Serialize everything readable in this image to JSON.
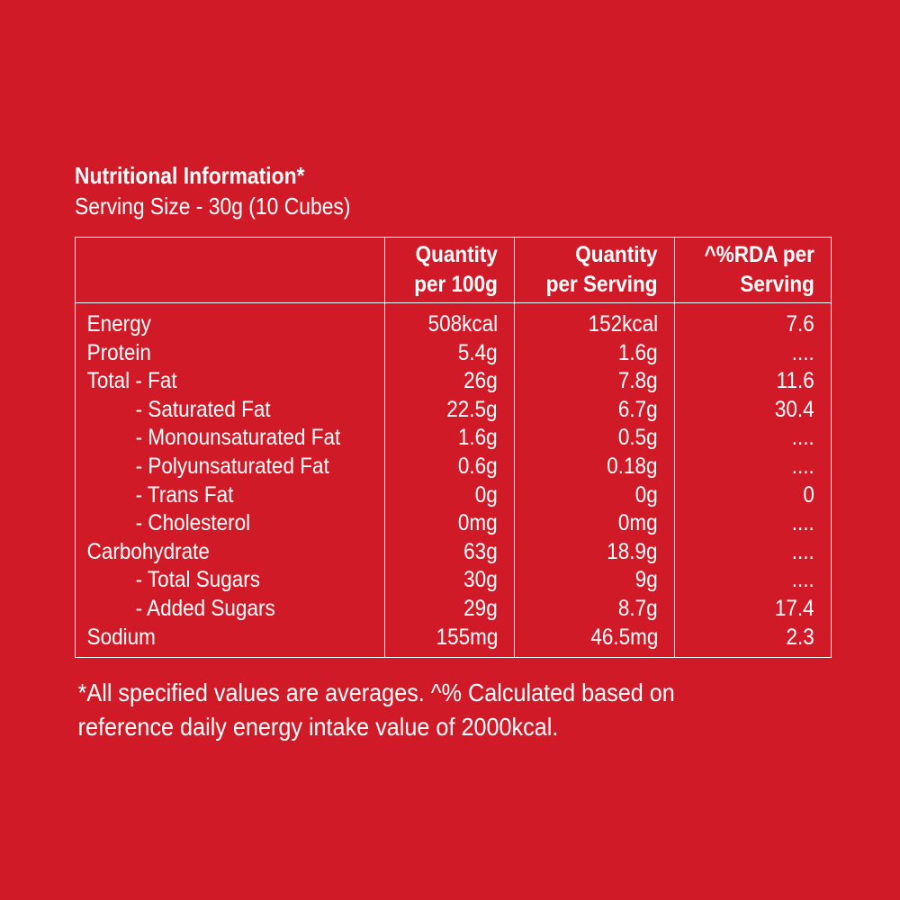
{
  "label": {
    "title": "Nutritional Information*",
    "serving_size": "Serving Size - 30g  (10 Cubes)",
    "headers": {
      "per_100g": [
        "Quantity",
        "per 100g"
      ],
      "per_serving": [
        "Quantity",
        "per Serving"
      ],
      "rda": [
        "^%RDA per",
        "Serving"
      ]
    },
    "rows": [
      {
        "name": "Energy",
        "indent": 0,
        "per_100g": "508kcal",
        "per_serving": "152kcal",
        "rda": "7.6"
      },
      {
        "name": "Protein",
        "indent": 0,
        "per_100g": "5.4g",
        "per_serving": "1.6g",
        "rda": "...."
      },
      {
        "name": "Total - Fat",
        "indent": 0,
        "per_100g": "26g",
        "per_serving": "7.8g",
        "rda": "11.6"
      },
      {
        "name": "- Saturated Fat",
        "indent": 1,
        "per_100g": "22.5g",
        "per_serving": "6.7g",
        "rda": "30.4"
      },
      {
        "name": "- Monounsaturated Fat",
        "indent": 1,
        "per_100g": "1.6g",
        "per_serving": "0.5g",
        "rda": "...."
      },
      {
        "name": "- Polyunsaturated Fat",
        "indent": 1,
        "per_100g": "0.6g",
        "per_serving": "0.18g",
        "rda": "...."
      },
      {
        "name": "- Trans Fat",
        "indent": 1,
        "per_100g": "0g",
        "per_serving": "0g",
        "rda": "0"
      },
      {
        "name": "- Cholesterol",
        "indent": 1,
        "per_100g": "0mg",
        "per_serving": "0mg",
        "rda": "...."
      },
      {
        "name": "Carbohydrate",
        "indent": 0,
        "per_100g": "63g",
        "per_serving": "18.9g",
        "rda": "...."
      },
      {
        "name": "- Total Sugars",
        "indent": 1,
        "per_100g": "30g",
        "per_serving": "9g",
        "rda": "...."
      },
      {
        "name": "- Added Sugars",
        "indent": 1,
        "per_100g": "29g",
        "per_serving": "8.7g",
        "rda": "17.4"
      },
      {
        "name": "Sodium",
        "indent": 0,
        "per_100g": "155mg",
        "per_serving": "46.5mg",
        "rda": "2.3"
      }
    ],
    "footnote": [
      "*All specified values are averages. ^% Calculated based on",
      "reference daily energy intake value of 2000kcal."
    ]
  },
  "colors": {
    "background": "#d11a27",
    "text": "#ffffff"
  }
}
